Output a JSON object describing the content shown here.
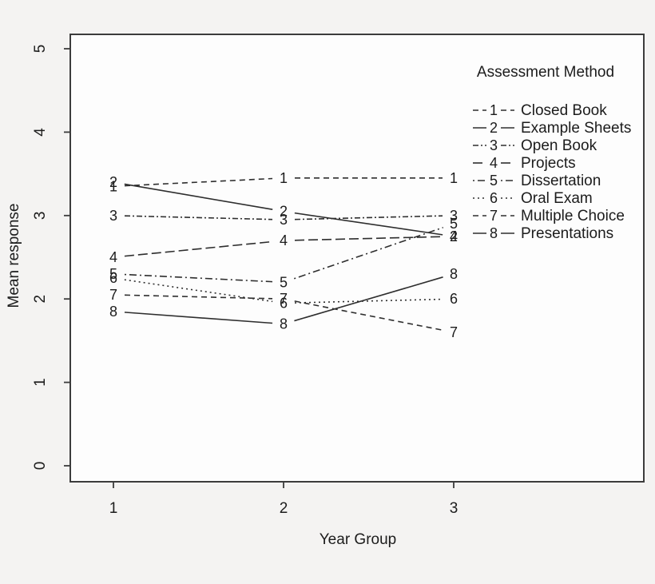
{
  "figure": {
    "bg_color": "#f4f3f2",
    "plot_bg_color": "#fdfdfd",
    "axis_color": "#3c3c3c",
    "line_color": "#2e2e2e",
    "text_color": "#1c1c1c"
  },
  "chart_data": {
    "type": "line",
    "variant": "interaction-plot-with-point-number-labels",
    "title": "",
    "xlabel": "Year Group",
    "ylabel": "Mean response",
    "x": [
      1,
      2,
      3
    ],
    "x_tick_labels": [
      "1",
      "2",
      "3"
    ],
    "y_ticks": [
      0,
      1,
      2,
      3,
      4,
      5
    ],
    "ylim": [
      0,
      5
    ],
    "grid": false,
    "legend": {
      "title": "Assessment Method",
      "position": "inside-top-right"
    },
    "series": [
      {
        "label": "1",
        "name": "Closed Book",
        "linestyle": "dashed",
        "values": [
          3.35,
          3.45,
          3.45
        ]
      },
      {
        "label": "2",
        "name": "Example Sheets",
        "linestyle": "solid",
        "values": [
          3.4,
          3.05,
          2.75
        ]
      },
      {
        "label": "3",
        "name": "Open Book",
        "linestyle": "twodash",
        "values": [
          3.0,
          2.95,
          3.0
        ]
      },
      {
        "label": "4",
        "name": "Projects",
        "linestyle": "longdash",
        "values": [
          2.5,
          2.7,
          2.75
        ]
      },
      {
        "label": "5",
        "name": "Dissertation",
        "linestyle": "dotdash",
        "values": [
          2.3,
          2.2,
          2.9
        ]
      },
      {
        "label": "6",
        "name": "Oral Exam",
        "linestyle": "dotted",
        "values": [
          2.25,
          1.95,
          2.0
        ]
      },
      {
        "label": "7",
        "name": "Multiple Choice",
        "linestyle": "dashed",
        "values": [
          2.05,
          2.0,
          1.6
        ]
      },
      {
        "label": "8",
        "name": "Presentations",
        "linestyle": "solid",
        "values": [
          1.85,
          1.7,
          2.3
        ]
      }
    ]
  }
}
